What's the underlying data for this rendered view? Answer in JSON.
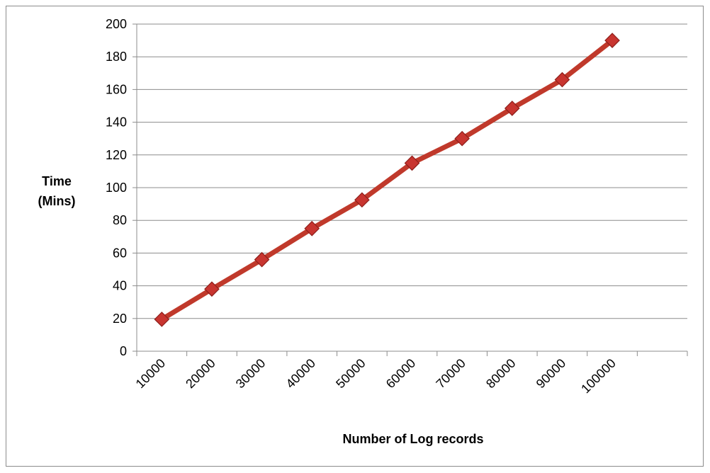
{
  "chart_data": {
    "type": "line",
    "x": [
      "10000",
      "20000",
      "30000",
      "40000",
      "50000",
      "60000",
      "70000",
      "80000",
      "90000",
      "100000"
    ],
    "series": [
      {
        "values": [
          19.5,
          38,
          56,
          75,
          92.5,
          115,
          130,
          148.5,
          166,
          190
        ]
      }
    ],
    "xlabel": "Number of Log records",
    "ylabel_lines": [
      "Time",
      "(Mins)"
    ],
    "ylim": [
      0,
      200
    ],
    "ytick_step": 20,
    "grid": "horizontal",
    "legend": "none",
    "colors": {
      "line": "#c0392b",
      "marker_fill": "#c83530",
      "marker_stroke": "#8e1f1b",
      "grid": "#8c8c8c",
      "axis": "#8c8c8c"
    }
  }
}
